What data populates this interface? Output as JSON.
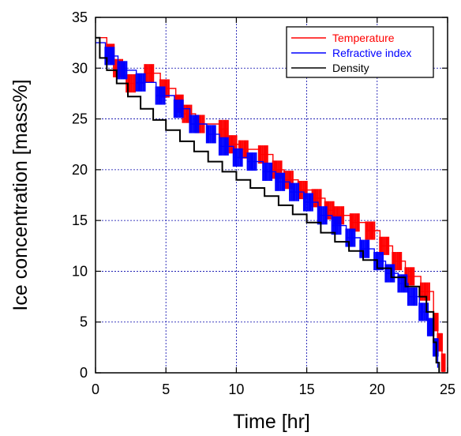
{
  "chart_data": {
    "type": "line",
    "xlabel": "Time [hr]",
    "ylabel": "Ice concentration [mass%]",
    "xlim": [
      0,
      25
    ],
    "ylim": [
      0,
      35
    ],
    "xticks": [
      0,
      5,
      10,
      15,
      20,
      25
    ],
    "yticks": [
      0,
      5,
      10,
      15,
      20,
      25,
      30,
      35
    ],
    "grid": true,
    "legend_position": "top-right",
    "series": [
      {
        "name": "Temperature",
        "color": "#ff0000",
        "points": [
          [
            0,
            33
          ],
          [
            0.8,
            31.5
          ],
          [
            1.3,
            30
          ],
          [
            2.2,
            28.5
          ],
          [
            3.5,
            29.5
          ],
          [
            4.6,
            28
          ],
          [
            5.7,
            26.5
          ],
          [
            6.2,
            25.5
          ],
          [
            7.1,
            24.5
          ],
          [
            8.8,
            24
          ],
          [
            9.4,
            22.5
          ],
          [
            10.2,
            22
          ],
          [
            11.6,
            21.5
          ],
          [
            12.6,
            20
          ],
          [
            13.4,
            19
          ],
          [
            14.4,
            18
          ],
          [
            15.4,
            17.2
          ],
          [
            16.3,
            16
          ],
          [
            17.0,
            15.5
          ],
          [
            18.1,
            14.8
          ],
          [
            19.2,
            14
          ],
          [
            20.2,
            12.5
          ],
          [
            21.1,
            11
          ],
          [
            22.0,
            9.5
          ],
          [
            23.1,
            8
          ],
          [
            24.0,
            5
          ],
          [
            24.3,
            3
          ],
          [
            24.6,
            1
          ],
          [
            24.8,
            0.5
          ]
        ]
      },
      {
        "name": "Refractive index",
        "color": "#0000ff",
        "points": [
          [
            0,
            32.5
          ],
          [
            0.7,
            31.2
          ],
          [
            1.6,
            29.8
          ],
          [
            2.9,
            28.6
          ],
          [
            4.3,
            27.3
          ],
          [
            5.6,
            26
          ],
          [
            6.7,
            24.5
          ],
          [
            7.9,
            23.5
          ],
          [
            8.8,
            22.3
          ],
          [
            9.8,
            21.2
          ],
          [
            10.8,
            20.8
          ],
          [
            11.9,
            19.8
          ],
          [
            12.8,
            18.8
          ],
          [
            13.8,
            17.8
          ],
          [
            14.8,
            16.8
          ],
          [
            15.8,
            15.5
          ],
          [
            16.8,
            14.5
          ],
          [
            17.8,
            13.3
          ],
          [
            18.8,
            12.2
          ],
          [
            19.8,
            11
          ],
          [
            20.6,
            9.8
          ],
          [
            21.5,
            8.8
          ],
          [
            22.2,
            7.5
          ],
          [
            23.0,
            6
          ],
          [
            23.6,
            4.5
          ],
          [
            24.0,
            2.5
          ],
          [
            24.3,
            0.5
          ]
        ]
      },
      {
        "name": "Density",
        "color": "#000000",
        "points": [
          [
            0,
            33
          ],
          [
            0.3,
            31
          ],
          [
            0.8,
            29.8
          ],
          [
            1.5,
            28.5
          ],
          [
            2.3,
            27.2
          ],
          [
            3.2,
            26
          ],
          [
            4.1,
            24.9
          ],
          [
            5.0,
            23.9
          ],
          [
            6.0,
            22.8
          ],
          [
            7.0,
            21.8
          ],
          [
            8.0,
            20.8
          ],
          [
            9.0,
            19.8
          ],
          [
            10.0,
            19
          ],
          [
            11.0,
            18.2
          ],
          [
            12.0,
            17.4
          ],
          [
            13.0,
            16.5
          ],
          [
            14.0,
            15.6
          ],
          [
            15.0,
            14.8
          ],
          [
            16.0,
            13.8
          ],
          [
            17.0,
            12.9
          ],
          [
            18.0,
            12
          ],
          [
            19.0,
            11.1
          ],
          [
            20.0,
            10.3
          ],
          [
            21.0,
            9.4
          ],
          [
            22.0,
            8.5
          ],
          [
            23.0,
            7.5
          ],
          [
            23.5,
            6
          ],
          [
            24.0,
            3
          ],
          [
            24.2,
            1
          ],
          [
            24.4,
            0
          ]
        ]
      }
    ]
  }
}
